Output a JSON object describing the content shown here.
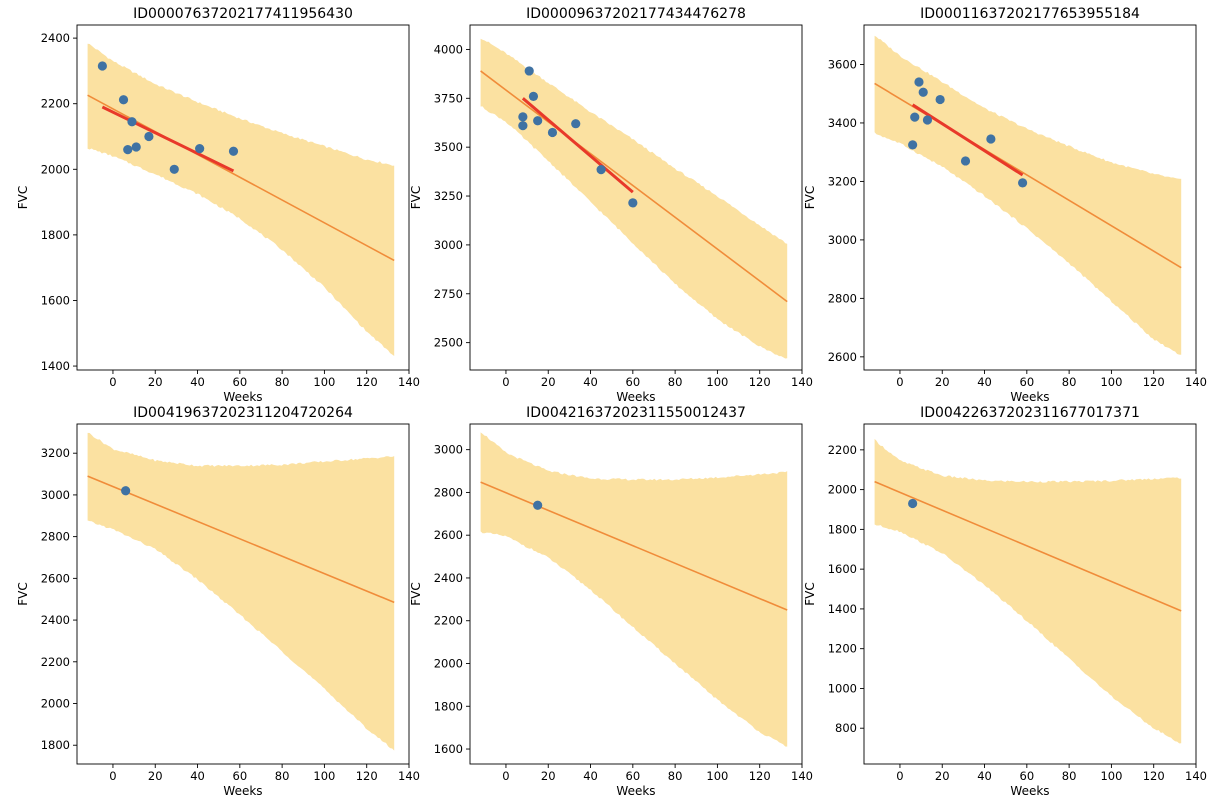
{
  "colors": {
    "band": "#fbe1a1",
    "prediction_line": "#f08c3a",
    "fit_line": "#e8392a",
    "points": "#3f72a3",
    "axis": "#000000"
  },
  "chart_data": [
    {
      "type": "line",
      "title": "ID00007637202177411956430",
      "xlabel": "Weeks",
      "ylabel": "FVC",
      "xlim": [
        -17,
        140
      ],
      "ylim": [
        1388,
        2440
      ],
      "xticks": [
        0,
        20,
        40,
        60,
        80,
        100,
        120,
        140
      ],
      "yticks": [
        1400,
        1600,
        1800,
        2000,
        2200,
        2400
      ],
      "grid": false,
      "prediction": {
        "x": [
          -12,
          133
        ],
        "y": [
          2226,
          1722
        ]
      },
      "band": {
        "x": [
          -12,
          0,
          20,
          40,
          60,
          80,
          100,
          120,
          133
        ],
        "upper": [
          2385,
          2330,
          2260,
          2205,
          2155,
          2110,
          2070,
          2030,
          2012
        ],
        "lower": [
          2065,
          2040,
          1985,
          1925,
          1850,
          1755,
          1640,
          1505,
          1430
        ]
      },
      "fit": {
        "x": [
          -5,
          57
        ],
        "y": [
          2190,
          1995
        ]
      },
      "points": {
        "x": [
          -5,
          5,
          7,
          9,
          11,
          17,
          29,
          41,
          57
        ],
        "y": [
          2315,
          2212,
          2060,
          2145,
          2068,
          2100,
          2000,
          2063,
          2055
        ]
      }
    },
    {
      "type": "line",
      "title": "ID00009637202177434476278",
      "xlabel": "Weeks",
      "ylabel": "FVC",
      "xlim": [
        -17,
        140
      ],
      "ylim": [
        2360,
        4125
      ],
      "xticks": [
        0,
        20,
        40,
        60,
        80,
        100,
        120,
        140
      ],
      "yticks": [
        2500,
        2750,
        3000,
        3250,
        3500,
        3750,
        4000
      ],
      "grid": false,
      "prediction": {
        "x": [
          -12,
          133
        ],
        "y": [
          3890,
          2710
        ]
      },
      "band": {
        "x": [
          -12,
          0,
          20,
          40,
          60,
          80,
          100,
          120,
          133
        ],
        "upper": [
          4060,
          3980,
          3830,
          3680,
          3540,
          3390,
          3250,
          3100,
          3005
        ],
        "lower": [
          3710,
          3630,
          3430,
          3220,
          3010,
          2800,
          2620,
          2480,
          2415
        ]
      },
      "fit": {
        "x": [
          8,
          60
        ],
        "y": [
          3750,
          3270
        ]
      },
      "points": {
        "x": [
          8,
          8,
          11,
          13,
          15,
          22,
          33,
          45,
          60
        ],
        "y": [
          3655,
          3610,
          3890,
          3760,
          3635,
          3575,
          3620,
          3385,
          3215
        ]
      }
    },
    {
      "type": "line",
      "title": "ID00011637202177653955184",
      "xlabel": "Weeks",
      "ylabel": "FVC",
      "xlim": [
        -17,
        140
      ],
      "ylim": [
        2555,
        3735
      ],
      "xticks": [
        0,
        20,
        40,
        60,
        80,
        100,
        120,
        140
      ],
      "yticks": [
        2600,
        2800,
        3000,
        3200,
        3400,
        3600
      ],
      "grid": false,
      "prediction": {
        "x": [
          -12,
          133
        ],
        "y": [
          3535,
          2905
        ]
      },
      "band": {
        "x": [
          -12,
          0,
          20,
          40,
          60,
          80,
          100,
          120,
          133
        ],
        "upper": [
          3700,
          3630,
          3540,
          3450,
          3380,
          3320,
          3265,
          3225,
          3205
        ],
        "lower": [
          3365,
          3330,
          3250,
          3150,
          3040,
          2920,
          2790,
          2660,
          2605
        ]
      },
      "fit": {
        "x": [
          6,
          58
        ],
        "y": [
          3462,
          3222
        ]
      },
      "points": {
        "x": [
          6,
          7,
          9,
          11,
          13,
          19,
          31,
          43,
          58
        ],
        "y": [
          3325,
          3420,
          3540,
          3505,
          3410,
          3480,
          3270,
          3345,
          3195
        ]
      }
    },
    {
      "type": "line",
      "title": "ID00419637202311204720264",
      "xlabel": "Weeks",
      "ylabel": "FVC",
      "xlim": [
        -17,
        140
      ],
      "ylim": [
        1710,
        3340
      ],
      "xticks": [
        0,
        20,
        40,
        60,
        80,
        100,
        120,
        140
      ],
      "yticks": [
        1800,
        2000,
        2200,
        2400,
        2600,
        2800,
        3000,
        3200
      ],
      "grid": false,
      "prediction": {
        "x": [
          -12,
          133
        ],
        "y": [
          3090,
          2485
        ]
      },
      "band": {
        "x": [
          -12,
          0,
          20,
          40,
          60,
          80,
          100,
          120,
          133
        ],
        "upper": [
          3300,
          3220,
          3165,
          3140,
          3140,
          3145,
          3160,
          3175,
          3185
        ],
        "lower": [
          2875,
          2835,
          2740,
          2595,
          2425,
          2250,
          2070,
          1880,
          1775
        ]
      },
      "fit": {
        "x": [],
        "y": []
      },
      "points": {
        "x": [
          6
        ],
        "y": [
          3020
        ]
      }
    },
    {
      "type": "line",
      "title": "ID00421637202311550012437",
      "xlabel": "Weeks",
      "ylabel": "FVC",
      "xlim": [
        -17,
        140
      ],
      "ylim": [
        1530,
        3120
      ],
      "xticks": [
        0,
        20,
        40,
        60,
        80,
        100,
        120,
        140
      ],
      "yticks": [
        1600,
        1800,
        2000,
        2200,
        2400,
        2600,
        2800,
        3000
      ],
      "grid": false,
      "prediction": {
        "x": [
          -12,
          133
        ],
        "y": [
          2848,
          2250
        ]
      },
      "band": {
        "x": [
          -12,
          0,
          20,
          40,
          60,
          80,
          100,
          120,
          133
        ],
        "upper": [
          3085,
          2985,
          2900,
          2865,
          2860,
          2860,
          2870,
          2885,
          2895
        ],
        "lower": [
          2615,
          2595,
          2495,
          2345,
          2170,
          2000,
          1830,
          1680,
          1610
        ]
      },
      "fit": {
        "x": [],
        "y": []
      },
      "points": {
        "x": [
          15
        ],
        "y": [
          2740
        ]
      }
    },
    {
      "type": "line",
      "title": "ID00422637202311677017371",
      "xlabel": "Weeks",
      "ylabel": "FVC",
      "xlim": [
        -17,
        140
      ],
      "ylim": [
        620,
        2330
      ],
      "xticks": [
        0,
        20,
        40,
        60,
        80,
        100,
        120,
        140
      ],
      "yticks": [
        800,
        1000,
        1200,
        1400,
        1600,
        1800,
        2000,
        2200
      ],
      "grid": false,
      "prediction": {
        "x": [
          -12,
          133
        ],
        "y": [
          2040,
          1390
        ]
      },
      "band": {
        "x": [
          -12,
          0,
          20,
          40,
          60,
          80,
          100,
          120,
          133
        ],
        "upper": [
          2250,
          2145,
          2070,
          2045,
          2040,
          2040,
          2045,
          2055,
          2060
        ],
        "lower": [
          1825,
          1790,
          1680,
          1520,
          1340,
          1150,
          960,
          800,
          720
        ]
      },
      "fit": {
        "x": [],
        "y": []
      },
      "points": {
        "x": [
          6
        ],
        "y": [
          1930
        ]
      }
    }
  ]
}
